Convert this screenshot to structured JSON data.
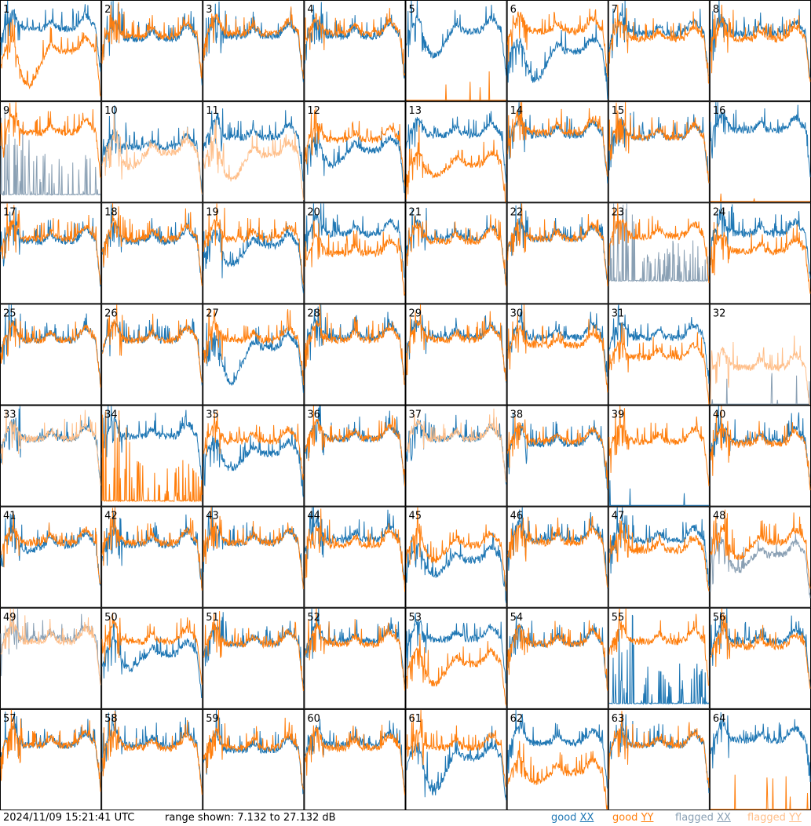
{
  "footer": {
    "timestamp": "2024/11/09 15:21:41 UTC",
    "range": "range shown: 7.132 to 27.132 dB"
  },
  "legend": [
    {
      "word": "good",
      "pol": "XX",
      "color": "#1f77b4"
    },
    {
      "word": "good",
      "pol": "YY",
      "color": "#ff7f0e"
    },
    {
      "word": "flagged",
      "pol": "XX",
      "color": "#8aa0b4"
    },
    {
      "word": "flagged",
      "pol": "YY",
      "color": "#ffbf8a"
    }
  ],
  "chart_data": {
    "type": "line",
    "layout": "8x8 small multiples",
    "ylim": [
      7.132,
      27.132
    ],
    "ylabel": "",
    "xlabel": "",
    "series_styles": {
      "good_xx": "#1f77b4",
      "good_yy": "#ff7f0e",
      "flagged_xx": "#8aa0b4",
      "flagged_yy": "#ffbf8a"
    },
    "panels": [
      {
        "n": "1",
        "xx": {
          "level": 21.5,
          "dip": 0,
          "flag": false
        },
        "yy": {
          "level": 17.0,
          "dip": 7,
          "flag": false
        }
      },
      {
        "n": "2",
        "xx": {
          "level": 19.5,
          "dip": 0,
          "flag": false
        },
        "yy": {
          "level": 20.0,
          "dip": 0,
          "flag": false
        }
      },
      {
        "n": "3",
        "xx": {
          "level": 20.0,
          "dip": 0,
          "flag": false
        },
        "yy": {
          "level": 20.5,
          "dip": 0,
          "flag": false
        }
      },
      {
        "n": "4",
        "xx": {
          "level": 20.0,
          "dip": 0,
          "flag": false
        },
        "yy": {
          "level": 20.5,
          "dip": 0,
          "flag": false
        }
      },
      {
        "n": "5",
        "xx": {
          "level": 21.0,
          "dip": 5,
          "flag": false
        },
        "yy": {
          "level": 7.2,
          "dip": 0,
          "flag": false,
          "dead": true
        }
      },
      {
        "n": "6",
        "xx": {
          "level": 17.0,
          "dip": 6,
          "flag": false
        },
        "yy": {
          "level": 21.0,
          "dip": 0,
          "flag": false
        }
      },
      {
        "n": "7",
        "xx": {
          "level": 20.5,
          "dip": 0,
          "flag": false
        },
        "yy": {
          "level": 19.5,
          "dip": 0,
          "flag": false
        }
      },
      {
        "n": "8",
        "xx": {
          "level": 20.5,
          "dip": 0,
          "flag": false
        },
        "yy": {
          "level": 19.5,
          "dip": 0,
          "flag": false
        }
      },
      {
        "n": "9",
        "xx": {
          "level": 8.5,
          "dip": 0,
          "flag": true,
          "spiky": true
        },
        "yy": {
          "level": 21.0,
          "dip": 0,
          "flag": false
        }
      },
      {
        "n": "10",
        "xx": {
          "level": 18.0,
          "dip": 0,
          "flag": false
        },
        "yy": {
          "level": 17.0,
          "dip": 3,
          "flag": true
        }
      },
      {
        "n": "11",
        "xx": {
          "level": 20.0,
          "dip": 0,
          "flag": false
        },
        "yy": {
          "level": 16.5,
          "dip": 5,
          "flag": true
        }
      },
      {
        "n": "12",
        "xx": {
          "level": 17.5,
          "dip": 3,
          "flag": false
        },
        "yy": {
          "level": 19.5,
          "dip": 0,
          "flag": false
        }
      },
      {
        "n": "13",
        "xx": {
          "level": 20.5,
          "dip": 0,
          "flag": false
        },
        "yy": {
          "level": 14.5,
          "dip": 2,
          "flag": false
        }
      },
      {
        "n": "14",
        "xx": {
          "level": 20.5,
          "dip": 0,
          "flag": false
        },
        "yy": {
          "level": 21.0,
          "dip": 0,
          "flag": false
        }
      },
      {
        "n": "15",
        "xx": {
          "level": 20.0,
          "dip": 0,
          "flag": false
        },
        "yy": {
          "level": 20.0,
          "dip": 0,
          "flag": false
        }
      },
      {
        "n": "16",
        "xx": {
          "level": 21.5,
          "dip": 0,
          "flag": false
        },
        "yy": {
          "level": 7.2,
          "dip": 0,
          "flag": false,
          "dead": true
        }
      },
      {
        "n": "17",
        "xx": {
          "level": 19.5,
          "dip": 0,
          "flag": false
        },
        "yy": {
          "level": 20.0,
          "dip": 0,
          "flag": false
        }
      },
      {
        "n": "18",
        "xx": {
          "level": 19.5,
          "dip": 0,
          "flag": false
        },
        "yy": {
          "level": 20.0,
          "dip": 0,
          "flag": false
        }
      },
      {
        "n": "19",
        "xx": {
          "level": 18.5,
          "dip": 4,
          "flag": false
        },
        "yy": {
          "level": 20.0,
          "dip": 0,
          "flag": false
        }
      },
      {
        "n": "20",
        "xx": {
          "level": 21.0,
          "dip": 0,
          "flag": false
        },
        "yy": {
          "level": 17.0,
          "dip": 0,
          "flag": false
        }
      },
      {
        "n": "21",
        "xx": {
          "level": 20.0,
          "dip": 0,
          "flag": false
        },
        "yy": {
          "level": 19.5,
          "dip": 0,
          "flag": false
        }
      },
      {
        "n": "22",
        "xx": {
          "level": 20.0,
          "dip": 0,
          "flag": false
        },
        "yy": {
          "level": 20.0,
          "dip": 0,
          "flag": false
        }
      },
      {
        "n": "23",
        "xx": {
          "level": 11.5,
          "dip": 0,
          "flag": true,
          "spiky": true
        },
        "yy": {
          "level": 20.5,
          "dip": 0,
          "flag": false
        }
      },
      {
        "n": "24",
        "xx": {
          "level": 21.0,
          "dip": 0,
          "flag": false
        },
        "yy": {
          "level": 17.5,
          "dip": 0,
          "flag": false
        }
      },
      {
        "n": "25",
        "xx": {
          "level": 20.0,
          "dip": 0,
          "flag": false
        },
        "yy": {
          "level": 20.0,
          "dip": 0,
          "flag": false
        }
      },
      {
        "n": "26",
        "xx": {
          "level": 20.0,
          "dip": 0,
          "flag": false
        },
        "yy": {
          "level": 20.0,
          "dip": 0,
          "flag": false
        }
      },
      {
        "n": "27",
        "xx": {
          "level": 18.5,
          "dip": 7,
          "flag": false
        },
        "yy": {
          "level": 20.0,
          "dip": 0,
          "flag": false
        }
      },
      {
        "n": "28",
        "xx": {
          "level": 20.5,
          "dip": 0,
          "flag": false
        },
        "yy": {
          "level": 20.0,
          "dip": 0,
          "flag": false
        }
      },
      {
        "n": "29",
        "xx": {
          "level": 20.5,
          "dip": 0,
          "flag": false
        },
        "yy": {
          "level": 20.0,
          "dip": 0,
          "flag": false
        }
      },
      {
        "n": "30",
        "xx": {
          "level": 20.5,
          "dip": 0,
          "flag": false
        },
        "yy": {
          "level": 19.0,
          "dip": 0,
          "flag": false
        }
      },
      {
        "n": "31",
        "xx": {
          "level": 20.5,
          "dip": 0,
          "flag": false
        },
        "yy": {
          "level": 16.5,
          "dip": 0,
          "flag": false
        }
      },
      {
        "n": "32",
        "xx": {
          "level": 7.2,
          "dip": 0,
          "flag": true,
          "dead": true
        },
        "yy": {
          "level": 14.5,
          "dip": 0,
          "flag": true
        }
      },
      {
        "n": "33",
        "xx": {
          "level": 20.5,
          "dip": 0,
          "flag": false
        },
        "yy": {
          "level": 20.5,
          "dip": 0,
          "flag": true
        }
      },
      {
        "n": "34",
        "xx": {
          "level": 21.0,
          "dip": 0,
          "flag": false
        },
        "yy": {
          "level": 8.0,
          "dip": 0,
          "flag": false,
          "spiky": true
        }
      },
      {
        "n": "35",
        "xx": {
          "level": 17.5,
          "dip": 3,
          "flag": false
        },
        "yy": {
          "level": 20.0,
          "dip": 0,
          "flag": false
        }
      },
      {
        "n": "36",
        "xx": {
          "level": 20.5,
          "dip": 0,
          "flag": false
        },
        "yy": {
          "level": 20.5,
          "dip": 0,
          "flag": false
        }
      },
      {
        "n": "37",
        "xx": {
          "level": 20.5,
          "dip": 0,
          "flag": false
        },
        "yy": {
          "level": 20.5,
          "dip": 0,
          "flag": true
        }
      },
      {
        "n": "38",
        "xx": {
          "level": 19.5,
          "dip": 0,
          "flag": false
        },
        "yy": {
          "level": 20.0,
          "dip": 0,
          "flag": false
        }
      },
      {
        "n": "39",
        "xx": {
          "level": 7.2,
          "dip": 0,
          "flag": false,
          "dead": true
        },
        "yy": {
          "level": 20.0,
          "dip": 0,
          "flag": false
        }
      },
      {
        "n": "40",
        "xx": {
          "level": 20.0,
          "dip": 0,
          "flag": false
        },
        "yy": {
          "level": 19.5,
          "dip": 0,
          "flag": false
        }
      },
      {
        "n": "41",
        "xx": {
          "level": 19.5,
          "dip": 1,
          "flag": false
        },
        "yy": {
          "level": 20.0,
          "dip": 0,
          "flag": false
        }
      },
      {
        "n": "42",
        "xx": {
          "level": 19.5,
          "dip": 0,
          "flag": false
        },
        "yy": {
          "level": 20.0,
          "dip": 0,
          "flag": false
        }
      },
      {
        "n": "43",
        "xx": {
          "level": 20.0,
          "dip": 0,
          "flag": false
        },
        "yy": {
          "level": 20.0,
          "dip": 0,
          "flag": false
        }
      },
      {
        "n": "44",
        "xx": {
          "level": 20.5,
          "dip": 0,
          "flag": false
        },
        "yy": {
          "level": 19.5,
          "dip": 0,
          "flag": false
        }
      },
      {
        "n": "45",
        "xx": {
          "level": 16.5,
          "dip": 3,
          "flag": false
        },
        "yy": {
          "level": 19.5,
          "dip": 3,
          "flag": false
        }
      },
      {
        "n": "46",
        "xx": {
          "level": 20.5,
          "dip": 0,
          "flag": false
        },
        "yy": {
          "level": 20.0,
          "dip": 0,
          "flag": false
        }
      },
      {
        "n": "47",
        "xx": {
          "level": 20.5,
          "dip": 0,
          "flag": false
        },
        "yy": {
          "level": 18.5,
          "dip": 0,
          "flag": false
        }
      },
      {
        "n": "48",
        "xx": {
          "level": 17.5,
          "dip": 3,
          "flag": true
        },
        "yy": {
          "level": 20.0,
          "dip": 3,
          "flag": false
        }
      },
      {
        "n": "49",
        "xx": {
          "level": 21.0,
          "dip": 0,
          "flag": true
        },
        "yy": {
          "level": 20.5,
          "dip": 0,
          "flag": true
        }
      },
      {
        "n": "50",
        "xx": {
          "level": 18.0,
          "dip": 3,
          "flag": false
        },
        "yy": {
          "level": 20.5,
          "dip": 0,
          "flag": false
        }
      },
      {
        "n": "51",
        "xx": {
          "level": 20.0,
          "dip": 0,
          "flag": false
        },
        "yy": {
          "level": 20.0,
          "dip": 0,
          "flag": false
        }
      },
      {
        "n": "52",
        "xx": {
          "level": 20.5,
          "dip": 0,
          "flag": false
        },
        "yy": {
          "level": 20.0,
          "dip": 0,
          "flag": false
        }
      },
      {
        "n": "53",
        "xx": {
          "level": 21.0,
          "dip": 0,
          "flag": false
        },
        "yy": {
          "level": 16.0,
          "dip": 4,
          "flag": false
        }
      },
      {
        "n": "54",
        "xx": {
          "level": 20.0,
          "dip": 0,
          "flag": false
        },
        "yy": {
          "level": 20.0,
          "dip": 0,
          "flag": false
        }
      },
      {
        "n": "55",
        "xx": {
          "level": 8.0,
          "dip": 0,
          "flag": false,
          "spiky": true
        },
        "yy": {
          "level": 20.5,
          "dip": 0,
          "flag": false
        }
      },
      {
        "n": "56",
        "xx": {
          "level": 20.5,
          "dip": 0,
          "flag": false
        },
        "yy": {
          "level": 19.5,
          "dip": 0,
          "flag": false
        }
      },
      {
        "n": "57",
        "xx": {
          "level": 20.0,
          "dip": 0,
          "flag": false
        },
        "yy": {
          "level": 20.0,
          "dip": 0,
          "flag": false
        }
      },
      {
        "n": "58",
        "xx": {
          "level": 20.0,
          "dip": 0,
          "flag": false
        },
        "yy": {
          "level": 19.5,
          "dip": 0,
          "flag": false
        }
      },
      {
        "n": "59",
        "xx": {
          "level": 19.0,
          "dip": 0,
          "flag": false
        },
        "yy": {
          "level": 19.5,
          "dip": 0,
          "flag": false
        }
      },
      {
        "n": "60",
        "xx": {
          "level": 20.0,
          "dip": 0,
          "flag": false
        },
        "yy": {
          "level": 19.5,
          "dip": 0,
          "flag": false
        }
      },
      {
        "n": "61",
        "xx": {
          "level": 17.5,
          "dip": 7,
          "flag": false
        },
        "yy": {
          "level": 19.5,
          "dip": 0,
          "flag": false
        }
      },
      {
        "n": "62",
        "xx": {
          "level": 20.5,
          "dip": 0,
          "flag": false
        },
        "yy": {
          "level": 14.5,
          "dip": 2,
          "flag": false
        }
      },
      {
        "n": "63",
        "xx": {
          "level": 20.0,
          "dip": 0,
          "flag": false
        },
        "yy": {
          "level": 20.0,
          "dip": 0,
          "flag": false
        }
      },
      {
        "n": "64",
        "xx": {
          "level": 21.0,
          "dip": 0,
          "flag": false
        },
        "yy": {
          "level": 7.2,
          "dip": 0,
          "flag": false,
          "dead": true
        }
      }
    ]
  }
}
